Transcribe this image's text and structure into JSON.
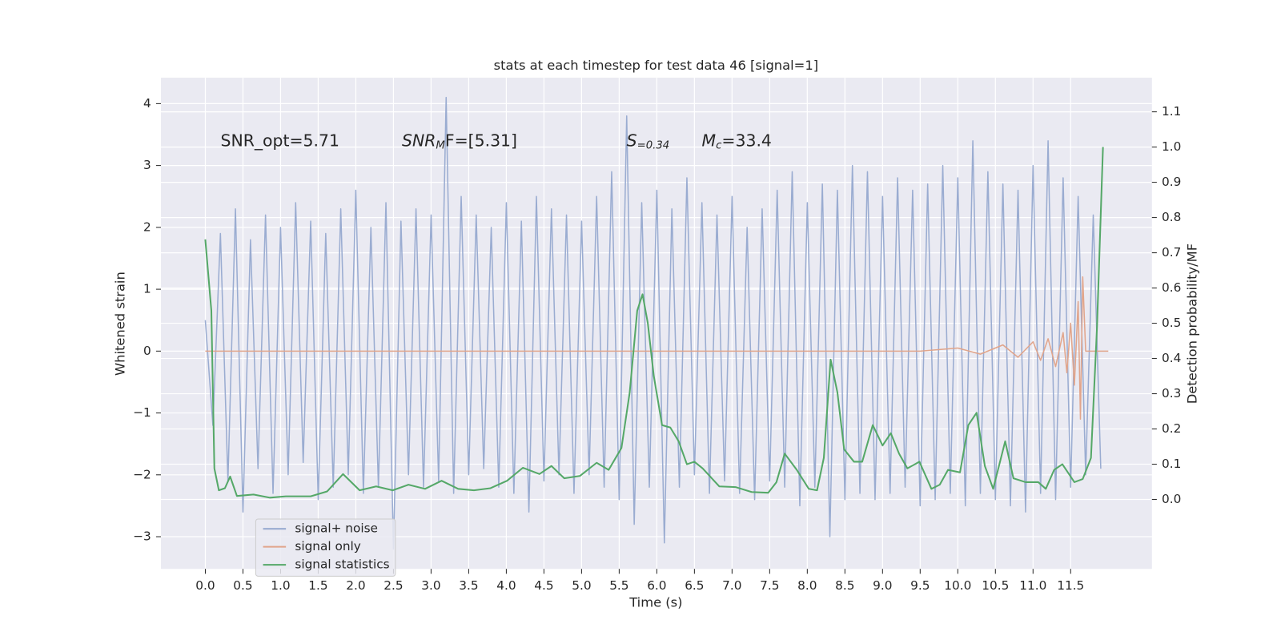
{
  "chart_data": {
    "type": "line",
    "title": "stats at each timestep for test data 46 [signal=1]",
    "xlabel": "Time (s)",
    "ylabel": "Whitened strain",
    "y2label": "Detection probability/MF",
    "annotations": [
      [
        "SNR_opt=5.71"
      ],
      [
        "SNR",
        "M",
        "F=[5.31]"
      ],
      [
        "S",
        "=0.34"
      ],
      [
        "M",
        "c",
        "=33.4"
      ]
    ],
    "xlim": [
      -0.59,
      12.58
    ],
    "ylim": [
      -3.52,
      4.42
    ],
    "y2lim": [
      -0.197,
      1.197
    ],
    "xticks": [
      {
        "value": 0,
        "label": "0.0"
      },
      {
        "value": 0.5,
        "label": "0.5"
      },
      {
        "value": 1,
        "label": "1.0"
      },
      {
        "value": 1.5,
        "label": "1.5"
      },
      {
        "value": 2,
        "label": "2.0"
      },
      {
        "value": 2.5,
        "label": "2.5"
      },
      {
        "value": 3,
        "label": "3.0"
      },
      {
        "value": 3.5,
        "label": "3.5"
      },
      {
        "value": 4,
        "label": "4.0"
      },
      {
        "value": 4.5,
        "label": "4.5"
      },
      {
        "value": 5,
        "label": "5.0"
      },
      {
        "value": 5.5,
        "label": "5.5"
      },
      {
        "value": 6,
        "label": "6.0"
      },
      {
        "value": 6.5,
        "label": "6.5"
      },
      {
        "value": 7,
        "label": "7.0"
      },
      {
        "value": 7.5,
        "label": "7.5"
      },
      {
        "value": 8,
        "label": "8.0"
      },
      {
        "value": 8.5,
        "label": "8.5"
      },
      {
        "value": 9,
        "label": "9.0"
      },
      {
        "value": 9.5,
        "label": "9.5"
      },
      {
        "value": 10,
        "label": "10.0"
      },
      {
        "value": 10.5,
        "label": "10.5"
      },
      {
        "value": 11,
        "label": "11.0"
      },
      {
        "value": 11.5,
        "label": "11.5"
      }
    ],
    "yticks": [
      {
        "value": -3,
        "label": "−3"
      },
      {
        "value": -2,
        "label": "−2"
      },
      {
        "value": -1,
        "label": "−1"
      },
      0,
      1,
      2,
      3,
      4
    ],
    "y2ticks": [
      {
        "value": 0,
        "label": "0.0"
      },
      {
        "value": 0.1,
        "label": "0.1"
      },
      {
        "value": 0.2,
        "label": "0.2"
      },
      {
        "value": 0.3,
        "label": "0.3"
      },
      {
        "value": 0.4,
        "label": "0.4"
      },
      {
        "value": 0.5,
        "label": "0.5"
      },
      {
        "value": 0.6,
        "label": "0.6"
      },
      {
        "value": 0.7,
        "label": "0.7"
      },
      {
        "value": 0.8,
        "label": "0.8"
      },
      {
        "value": 0.9,
        "label": "0.9"
      },
      {
        "value": 1,
        "label": "1.0"
      },
      {
        "value": 1.1,
        "label": "1.1"
      }
    ],
    "grid": true,
    "legend": "lower left",
    "series": [
      {
        "name": "signal+ noise",
        "color": "#9aacd1",
        "x": [
          0,
          0.1,
          0.2,
          0.3,
          0.4,
          0.5,
          0.6,
          0.7,
          0.8,
          0.9,
          1,
          1.1,
          1.2,
          1.3,
          1.4,
          1.5,
          1.6,
          1.7,
          1.8,
          1.9,
          2,
          2.1,
          2.2,
          2.3,
          2.4,
          2.5,
          2.6,
          2.7,
          2.8,
          2.9,
          3,
          3.1,
          3.2,
          3.3,
          3.4,
          3.5,
          3.6,
          3.7,
          3.8,
          3.9,
          4,
          4.1,
          4.2,
          4.3,
          4.4,
          4.5,
          4.6,
          4.7,
          4.8,
          4.9,
          5,
          5.1,
          5.2,
          5.3,
          5.4,
          5.5,
          5.6,
          5.7,
          5.8,
          5.9,
          6,
          6.1,
          6.2,
          6.3,
          6.4,
          6.5,
          6.6,
          6.7,
          6.8,
          6.9,
          7,
          7.1,
          7.2,
          7.3,
          7.4,
          7.5,
          7.6,
          7.7,
          7.8,
          7.9,
          8,
          8.1,
          8.2,
          8.3,
          8.4,
          8.5,
          8.6,
          8.7,
          8.8,
          8.9,
          9,
          9.1,
          9.2,
          9.3,
          9.4,
          9.5,
          9.6,
          9.7,
          9.8,
          9.9,
          10,
          10.1,
          10.2,
          10.3,
          10.4,
          10.5,
          10.6,
          10.7,
          10.8,
          10.9,
          11,
          11.1,
          11.2,
          11.3,
          11.4,
          11.5,
          11.6,
          11.7,
          11.8,
          11.9
        ],
        "values": [
          0.5,
          -1.2,
          1.9,
          -2.1,
          2.3,
          -2.6,
          1.8,
          -1.9,
          2.2,
          -2.3,
          2.0,
          -2.0,
          2.4,
          -1.8,
          2.1,
          -2.4,
          1.9,
          -2.2,
          2.3,
          -2.0,
          2.6,
          -2.3,
          2.0,
          -2.2,
          2.4,
          -3.2,
          2.1,
          -2.0,
          2.3,
          -2.2,
          2.2,
          -2.1,
          4.1,
          -2.3,
          2.5,
          -2.0,
          2.2,
          -1.9,
          2.0,
          -2.2,
          2.4,
          -2.3,
          2.1,
          -2.6,
          2.5,
          -2.1,
          2.3,
          -2.0,
          2.2,
          -2.3,
          2.1,
          -2.0,
          2.5,
          -2.2,
          2.9,
          -2.4,
          3.8,
          -2.8,
          2.4,
          -2.2,
          2.6,
          -3.1,
          2.3,
          -2.2,
          2.8,
          -2.0,
          2.4,
          -2.3,
          2.2,
          -2.1,
          2.5,
          -2.3,
          2.0,
          -2.4,
          2.3,
          -2.1,
          2.6,
          -2.2,
          2.9,
          -2.5,
          2.4,
          -2.2,
          2.7,
          -3.0,
          2.6,
          -2.4,
          3.0,
          -2.3,
          2.9,
          -2.4,
          2.5,
          -2.3,
          2.8,
          -2.2,
          2.6,
          -2.5,
          2.7,
          -2.4,
          3.0,
          -2.3,
          2.8,
          -2.5,
          3.4,
          -2.3,
          2.9,
          -2.4,
          2.7,
          -2.5,
          2.6,
          -2.6,
          3.0,
          -2.3,
          3.4,
          -2.4,
          2.8,
          -2.2,
          2.5,
          -2.0,
          2.2,
          -1.9
        ]
      },
      {
        "name": "signal only",
        "color": "#e1a58b",
        "x": [
          0,
          9.5,
          10,
          10.3,
          10.6,
          10.8,
          11,
          11.1,
          11.2,
          11.3,
          11.4,
          11.45,
          11.5,
          11.55,
          11.6,
          11.63,
          11.66,
          11.7,
          12
        ],
        "values": [
          0,
          0,
          0.05,
          -0.05,
          0.1,
          -0.1,
          0.15,
          -0.15,
          0.2,
          -0.25,
          0.3,
          -0.35,
          0.45,
          -0.55,
          0.8,
          -1.1,
          1.2,
          0,
          0
        ]
      },
      {
        "name": "signal statistics",
        "color": "#55a868",
        "axis": "y2",
        "x": [
          0,
          0.08,
          0.12,
          0.18,
          0.26,
          0.33,
          0.42,
          0.64,
          0.86,
          1.07,
          1.4,
          1.62,
          1.83,
          2.05,
          2.27,
          2.49,
          2.7,
          2.92,
          3.14,
          3.36,
          3.57,
          3.79,
          4.01,
          4.22,
          4.44,
          4.6,
          4.77,
          4.98,
          5.2,
          5.36,
          5.53,
          5.64,
          5.74,
          5.81,
          5.88,
          5.96,
          6.07,
          6.18,
          6.29,
          6.4,
          6.5,
          6.61,
          6.83,
          7.05,
          7.26,
          7.48,
          7.59,
          7.7,
          7.86,
          8.02,
          8.13,
          8.22,
          8.31,
          8.4,
          8.49,
          8.62,
          8.73,
          8.87,
          9,
          9.11,
          9.22,
          9.33,
          9.49,
          9.65,
          9.76,
          9.87,
          10.03,
          10.14,
          10.25,
          10.36,
          10.47,
          10.63,
          10.74,
          10.9,
          11.07,
          11.17,
          11.28,
          11.39,
          11.55,
          11.66,
          11.77,
          11.85,
          11.93
        ],
        "values": [
          0.738,
          0.536,
          0.088,
          0.026,
          0.032,
          0.065,
          0.01,
          0.014,
          0.005,
          0.009,
          0.009,
          0.023,
          0.072,
          0.026,
          0.037,
          0.026,
          0.042,
          0.03,
          0.053,
          0.03,
          0.026,
          0.032,
          0.053,
          0.09,
          0.072,
          0.095,
          0.06,
          0.067,
          0.104,
          0.084,
          0.146,
          0.304,
          0.536,
          0.582,
          0.501,
          0.35,
          0.211,
          0.204,
          0.165,
          0.1,
          0.107,
          0.088,
          0.037,
          0.035,
          0.021,
          0.019,
          0.049,
          0.13,
          0.084,
          0.03,
          0.026,
          0.118,
          0.397,
          0.304,
          0.142,
          0.107,
          0.107,
          0.211,
          0.153,
          0.188,
          0.13,
          0.088,
          0.107,
          0.03,
          0.042,
          0.084,
          0.077,
          0.211,
          0.246,
          0.095,
          0.03,
          0.165,
          0.06,
          0.049,
          0.049,
          0.03,
          0.084,
          0.1,
          0.049,
          0.058,
          0.118,
          0.49,
          1.0
        ]
      }
    ]
  }
}
